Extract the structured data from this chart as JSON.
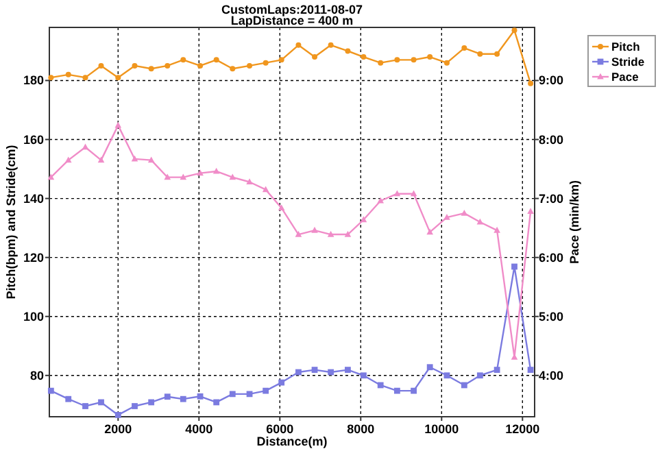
{
  "chart_data": {
    "type": "line",
    "title": "CustomLaps:2011-08-07",
    "subtitle": "LapDistance = 400 m",
    "xlabel": "Distance(m)",
    "ylabel": "Pitch(bpm) and Stride(cm)",
    "y2label": "Pace (min/km)",
    "x": [
      340,
      770,
      1190,
      1580,
      2000,
      2410,
      2820,
      3220,
      3610,
      4030,
      4430,
      4830,
      5250,
      5650,
      6040,
      6460,
      6860,
      7260,
      7680,
      8070,
      8490,
      8900,
      9310,
      9710,
      10130,
      10560,
      10950,
      11370,
      11800,
      12200
    ],
    "xlim": [
      300,
      12300
    ],
    "xticks": [
      2000,
      4000,
      6000,
      8000,
      10000,
      12000
    ],
    "ylim": [
      66,
      198
    ],
    "yticks": [
      80,
      100,
      120,
      140,
      160,
      180
    ],
    "y2lim": [
      3.3,
      9.9
    ],
    "y2ticks": [
      {
        "value": 4,
        "label": "4:00"
      },
      {
        "value": 5,
        "label": "5:00"
      },
      {
        "value": 6,
        "label": "6:00"
      },
      {
        "value": 7,
        "label": "7:00"
      },
      {
        "value": 8,
        "label": "8:00"
      },
      {
        "value": 9,
        "label": "9:00"
      }
    ],
    "grid": true,
    "legend": "top right",
    "line_style": "solid",
    "series": [
      {
        "name": "Pitch",
        "color": "#f0961e",
        "marker": "circle",
        "values": [
          181,
          182,
          181,
          185,
          181,
          185,
          184,
          185,
          187,
          185,
          187,
          184,
          185,
          186,
          187,
          192,
          188,
          192,
          190,
          188,
          186,
          187,
          187,
          188,
          186,
          191,
          189,
          189,
          197,
          179
        ]
      },
      {
        "name": "Stride",
        "color": "#7b7be0",
        "marker": "square",
        "values": [
          74.8,
          72,
          69.6,
          70.9,
          66.6,
          69.6,
          70.9,
          72.8,
          72,
          72.9,
          70.9,
          73.7,
          73.7,
          74.8,
          77.6,
          81.1,
          81.9,
          81.1,
          81.9,
          80,
          76.7,
          74.8,
          74.8,
          82.8,
          80,
          76.7,
          80,
          81.9,
          116.9,
          81.9
        ]
      },
      {
        "name": "Pace",
        "color": "#f08cc8",
        "marker": "triangle",
        "axis": "y2",
        "values": [
          7.36,
          7.65,
          7.87,
          7.65,
          8.24,
          7.67,
          7.65,
          7.36,
          7.36,
          7.43,
          7.46,
          7.36,
          7.28,
          7.15,
          6.84,
          6.39,
          6.46,
          6.39,
          6.39,
          6.64,
          6.96,
          7.08,
          7.08,
          6.43,
          6.68,
          6.75,
          6.6,
          6.46,
          4.31,
          6.78
        ]
      }
    ]
  }
}
